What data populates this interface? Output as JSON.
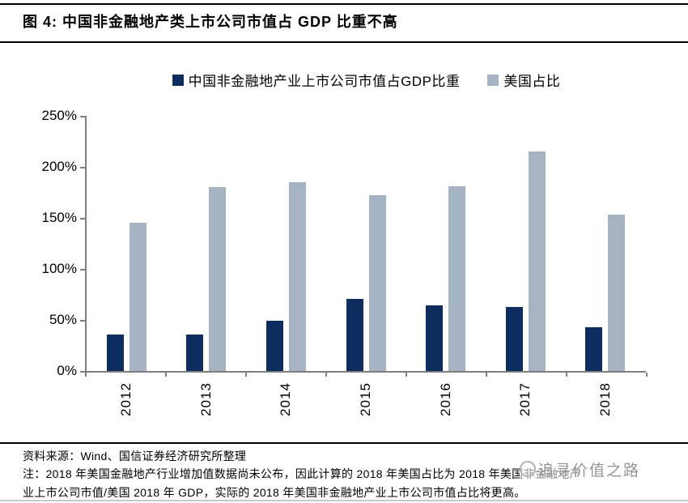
{
  "figure": {
    "title": "图 4: 中国非金融地产类上市公司市值占 GDP 比重不高",
    "source_line": "资料来源：Wind、国信证券经济研究所整理",
    "note_line1": "注：2018 年美国金融地产行业增加值数据尚未公布，因此计算的 2018 年美国占比为 2018 年美国非金融地产",
    "note_line2": "业上市公司市值/美国 2018 年 GDP，实际的 2018 年美国非金融地产业上市公司市值占比将更高。",
    "watermark_text": "追寻价值之路"
  },
  "colors": {
    "china_bar": "#0c2d5e",
    "us_bar": "#a5b3c2",
    "axis": "#7f7f7f",
    "watermark": "#949494"
  },
  "chart_data": {
    "type": "bar",
    "categories": [
      "2012",
      "2013",
      "2014",
      "2015",
      "2016",
      "2017",
      "2018"
    ],
    "series": [
      {
        "name": "中国非金融地产业上市公司市值占GDP比重",
        "color": "#0c2d5e",
        "values": [
          36,
          36,
          49,
          71,
          64,
          63,
          43
        ]
      },
      {
        "name": "美国占比",
        "color": "#a5b3c2",
        "values": [
          145,
          180,
          185,
          172,
          181,
          215,
          153
        ]
      }
    ],
    "title": "",
    "xlabel": "",
    "ylabel": "",
    "ylim": [
      0,
      250
    ],
    "ytick_step": 50,
    "ytick_labels": [
      "0%",
      "50%",
      "100%",
      "150%",
      "200%",
      "250%"
    ],
    "unit": "percent of GDP",
    "legend_position": "top-center",
    "grid": false
  }
}
